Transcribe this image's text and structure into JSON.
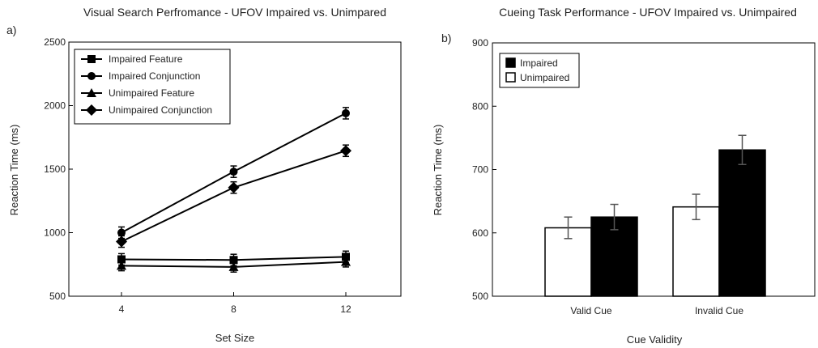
{
  "chart_data": [
    {
      "type": "line",
      "panel": "a)",
      "title": "Visual Search Perfromance - UFOV Impaired vs. Unimpared",
      "xlabel": "Set Size",
      "ylabel": "Reaction Time (ms)",
      "x": [
        4,
        8,
        12
      ],
      "xticks": [
        "4",
        "8",
        "12"
      ],
      "ylim": [
        500,
        2500
      ],
      "yticks": [
        "500",
        "1000",
        "1500",
        "2000",
        "2500"
      ],
      "legend_position": "top-left",
      "series": [
        {
          "name": "Impaired Feature",
          "marker": "square",
          "values": [
            790,
            785,
            810
          ],
          "errors": [
            45,
            45,
            45
          ]
        },
        {
          "name": "Impaired Conjunction",
          "marker": "circle",
          "values": [
            1000,
            1480,
            1940
          ],
          "errors": [
            45,
            45,
            45
          ]
        },
        {
          "name": "Unimpaired Feature",
          "marker": "triangle",
          "values": [
            740,
            730,
            770
          ],
          "errors": [
            40,
            40,
            40
          ]
        },
        {
          "name": "Unimpaired Conjunction",
          "marker": "diamond",
          "values": [
            930,
            1355,
            1645
          ],
          "errors": [
            45,
            45,
            45
          ]
        }
      ]
    },
    {
      "type": "bar",
      "panel": "b)",
      "title": "Cueing Task Performance - UFOV Impaired vs. Unimpaired",
      "xlabel": "Cue Validity",
      "ylabel": "Reaction Time (ms)",
      "categories": [
        "Valid Cue",
        "Invalid Cue"
      ],
      "ylim": [
        500,
        900
      ],
      "yticks": [
        "500",
        "600",
        "700",
        "800",
        "900"
      ],
      "legend_position": "top-left",
      "series": [
        {
          "name": "Unimpaired",
          "color": "#ffffff",
          "values": [
            608,
            641
          ],
          "errors": [
            17,
            20
          ]
        },
        {
          "name": "Impaired",
          "color": "#000000",
          "values": [
            625,
            731
          ],
          "errors": [
            20,
            23
          ]
        }
      ]
    }
  ]
}
